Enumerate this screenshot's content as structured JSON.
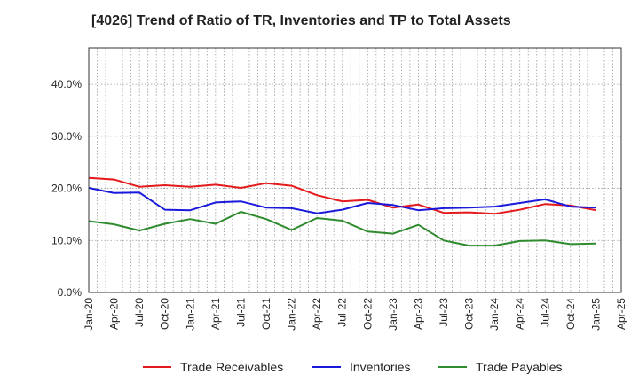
{
  "chart_data": {
    "type": "line",
    "title": "[4026]  Trend of Ratio of TR, Inventories and TP to Total Assets",
    "x": [
      "Jan-20",
      "Apr-20",
      "Jul-20",
      "Oct-20",
      "Jan-21",
      "Apr-21",
      "Jul-21",
      "Oct-21",
      "Jan-22",
      "Apr-22",
      "Jul-22",
      "Oct-22",
      "Jan-23",
      "Apr-23",
      "Jul-23",
      "Oct-23",
      "Jan-24",
      "Apr-24",
      "Jul-24",
      "Oct-24",
      "Jan-25"
    ],
    "x_tick_labels": [
      "Jan-20",
      "Apr-20",
      "Jul-20",
      "Oct-20",
      "Jan-21",
      "Apr-21",
      "Jul-21",
      "Oct-21",
      "Jan-22",
      "Apr-22",
      "Jul-22",
      "Oct-22",
      "Jan-23",
      "Apr-23",
      "Jul-23",
      "Oct-23",
      "Jan-24",
      "Apr-24",
      "Jul-24",
      "Oct-24",
      "Jan-25",
      "Apr-25"
    ],
    "y_tick_labels": [
      "0.0%",
      "10.0%",
      "20.0%",
      "30.0%",
      "40.0%"
    ],
    "ylim": [
      0,
      47
    ],
    "y_ticks": [
      0,
      10,
      20,
      30,
      40
    ],
    "grid": true,
    "legend_position": "bottom",
    "series": [
      {
        "name": "Trade Receivables",
        "color": "#e41a1c",
        "values": [
          22.0,
          21.7,
          20.3,
          20.6,
          20.3,
          20.7,
          20.1,
          21.0,
          20.5,
          18.7,
          17.5,
          17.8,
          16.3,
          16.9,
          15.3,
          15.4,
          15.1,
          15.9,
          17.0,
          16.7,
          15.8
        ]
      },
      {
        "name": "Inventories",
        "color": "#1a1adc",
        "values": [
          20.1,
          19.1,
          19.2,
          15.9,
          15.8,
          17.3,
          17.5,
          16.3,
          16.2,
          15.2,
          15.9,
          17.2,
          16.8,
          15.8,
          16.2,
          16.3,
          16.5,
          17.2,
          17.9,
          16.5,
          16.3
        ]
      },
      {
        "name": "Trade Payables",
        "color": "#2e8b2e",
        "values": [
          13.7,
          13.1,
          11.9,
          13.2,
          14.1,
          13.2,
          15.5,
          14.1,
          12.0,
          14.3,
          13.8,
          11.7,
          11.3,
          13.0,
          10.0,
          9.0,
          9.0,
          9.9,
          10.0,
          9.3,
          9.4
        ]
      }
    ]
  }
}
